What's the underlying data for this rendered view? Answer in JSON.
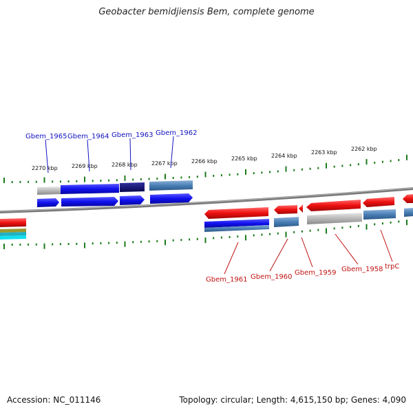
{
  "title": "Geobacter bemidjiensis Bem, complete genome",
  "footer": {
    "accession": "Accession: NC_011146",
    "summary": "Topology: circular; Length: 4,615,150 bp; Genes: 4,090"
  },
  "ruler_labels": [
    "2270 kbp",
    "2269 kbp",
    "2268 kbp",
    "2267 kbp",
    "2266 kbp",
    "2265 kbp",
    "2264 kbp",
    "2263 kbp",
    "2262 kbp"
  ],
  "top_genes": [
    "Gbem_1965",
    "Gbem_1964",
    "Gbem_1963",
    "Gbem_1962"
  ],
  "bottom_genes": [
    "Gbem_1961",
    "Gbem_1960",
    "Gbem_1959",
    "Gbem_1958",
    "trpC"
  ],
  "colors": {
    "forward_cds": "#1010ee",
    "reverse_cds": "#ee1010",
    "dark_cds": "#0a0a80",
    "steel": "#4a7fb5",
    "gray": "#b8b8b8",
    "backbone": "#888888",
    "tick": "#1a7a1a"
  }
}
